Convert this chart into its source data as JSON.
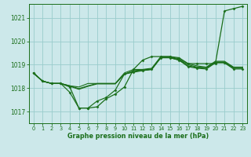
{
  "title": "Graphe pression niveau de la mer (hPa)",
  "bg_color": "#cce8ea",
  "grid_color": "#99cccc",
  "line_color": "#1a6e1a",
  "xlim": [
    -0.5,
    23.5
  ],
  "ylim": [
    1016.5,
    1021.6
  ],
  "yticks": [
    1017,
    1018,
    1019,
    1020,
    1021
  ],
  "xticks": [
    0,
    1,
    2,
    3,
    4,
    5,
    6,
    7,
    8,
    9,
    10,
    11,
    12,
    13,
    14,
    15,
    16,
    17,
    18,
    19,
    20,
    21,
    22,
    23
  ],
  "lines": [
    {
      "y": [
        1018.65,
        1018.3,
        1018.2,
        1018.2,
        1018.05,
        1017.15,
        1017.15,
        1017.2,
        1017.55,
        1017.75,
        1018.05,
        1018.8,
        1019.2,
        1019.35,
        1019.35,
        1019.35,
        1019.3,
        1019.05,
        1019.05,
        1019.05,
        1019.05,
        1021.3,
        1021.4,
        1021.5
      ],
      "marker": true,
      "lw": 0.9
    },
    {
      "y": [
        1018.65,
        1018.3,
        1018.2,
        1018.2,
        1018.1,
        1018.05,
        1018.2,
        1018.2,
        1018.2,
        1018.2,
        1018.65,
        1018.8,
        1018.8,
        1018.85,
        1019.35,
        1019.35,
        1019.25,
        1019.05,
        1018.95,
        1018.9,
        1019.15,
        1019.15,
        1018.9,
        1018.9
      ],
      "marker": false,
      "lw": 0.8
    },
    {
      "y": [
        1018.65,
        1018.3,
        1018.2,
        1018.2,
        1018.1,
        1017.98,
        1018.1,
        1018.2,
        1018.2,
        1018.2,
        1018.6,
        1018.75,
        1018.78,
        1018.82,
        1019.32,
        1019.32,
        1019.22,
        1019.0,
        1018.9,
        1018.88,
        1019.12,
        1019.12,
        1018.88,
        1018.88
      ],
      "marker": false,
      "lw": 0.8
    },
    {
      "y": [
        1018.65,
        1018.3,
        1018.2,
        1018.2,
        1018.08,
        1017.95,
        1018.08,
        1018.18,
        1018.18,
        1018.18,
        1018.6,
        1018.72,
        1018.75,
        1018.8,
        1019.3,
        1019.3,
        1019.2,
        1018.95,
        1018.88,
        1018.85,
        1019.1,
        1019.1,
        1018.85,
        1018.85
      ],
      "marker": false,
      "lw": 0.8
    },
    {
      "y": [
        1018.65,
        1018.3,
        1018.2,
        1018.2,
        1017.82,
        1017.15,
        1017.15,
        1017.45,
        1017.6,
        1017.92,
        1018.6,
        1018.68,
        1018.75,
        1018.8,
        1019.3,
        1019.3,
        1019.2,
        1018.92,
        1018.85,
        1018.82,
        1019.08,
        1019.08,
        1018.82,
        1018.82
      ],
      "marker": true,
      "lw": 0.85
    }
  ],
  "ylabel_fontsize": 5.5,
  "xlabel_fontsize": 5.8,
  "tick_fontsize": 4.8
}
